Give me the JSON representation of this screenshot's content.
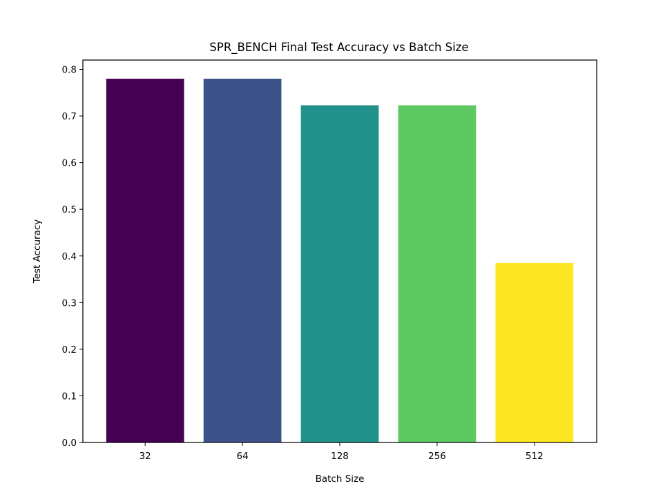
{
  "chart_data": {
    "type": "bar",
    "title": "SPR_BENCH Final Test Accuracy vs Batch Size",
    "xlabel": "Batch Size",
    "ylabel": "Test Accuracy",
    "categories": [
      "32",
      "64",
      "128",
      "256",
      "512"
    ],
    "values": [
      0.78,
      0.78,
      0.723,
      0.723,
      0.385
    ],
    "colors": [
      "#440154",
      "#3b528b",
      "#21918c",
      "#5ec962",
      "#fde725"
    ],
    "ylim": [
      0,
      0.82
    ],
    "yticks": [
      0.0,
      0.1,
      0.2,
      0.3,
      0.4,
      0.5,
      0.6,
      0.7,
      0.8
    ],
    "ytick_labels": [
      "0.0",
      "0.1",
      "0.2",
      "0.3",
      "0.4",
      "0.5",
      "0.6",
      "0.7",
      "0.8"
    ],
    "grid": false,
    "legend": "none"
  }
}
